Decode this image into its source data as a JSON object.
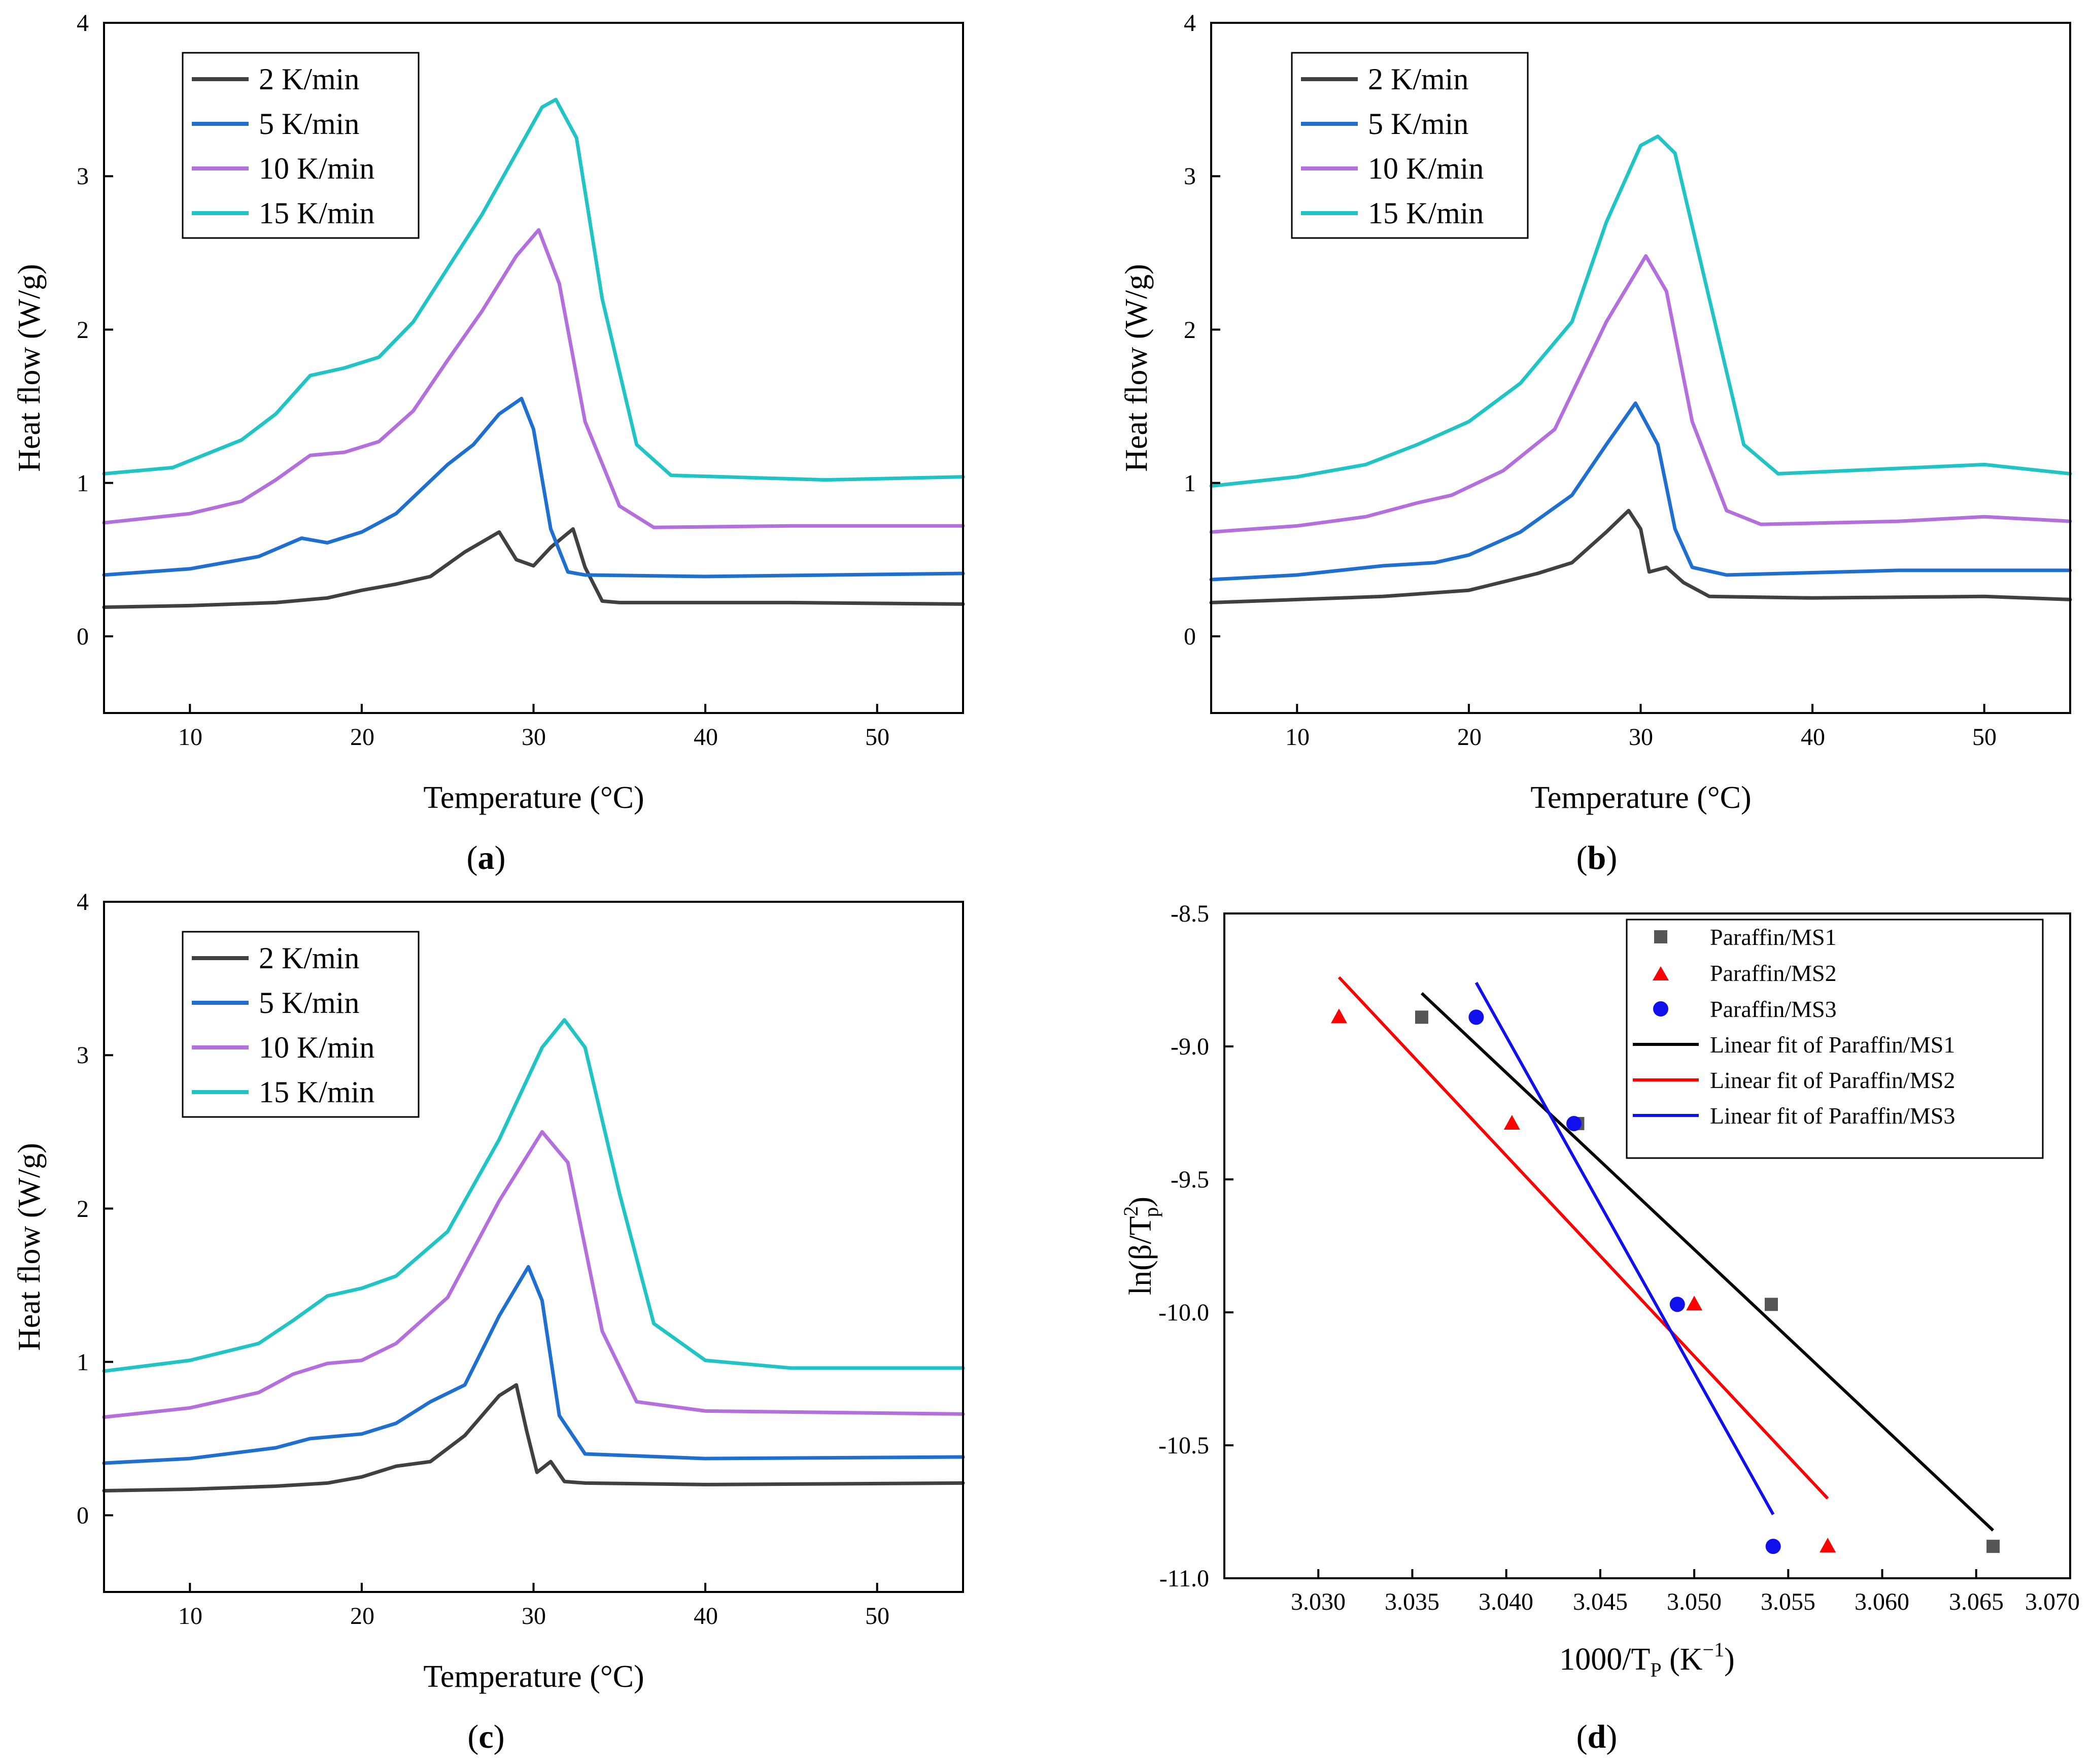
{
  "colors": {
    "rate2": "#404040",
    "rate5": "#1f6fd1",
    "rate10": "#b36fdb",
    "rate15": "#20c4c4",
    "ms1": "#555555",
    "ms2": "#ff0000",
    "ms3": "#1010ee",
    "fit1": "#000000",
    "fit2": "#ff0000",
    "fit3": "#1010ee"
  },
  "chart_data": [
    {
      "id": "a",
      "panel_label": [
        "(",
        "a",
        ")"
      ],
      "type": "line",
      "xlabel": "Temperature (°C)",
      "ylabel": "Heat flow (W/g)",
      "xlim": [
        5,
        55
      ],
      "ylim": [
        -0.5,
        4
      ],
      "xticks": [
        "10",
        "20",
        "30",
        "40",
        "50"
      ],
      "xtick_values": [
        10,
        20,
        30,
        40,
        50
      ],
      "yticks": [
        "0",
        "1",
        "2",
        "3",
        "4"
      ],
      "ytick_values": [
        0,
        1,
        2,
        3,
        4
      ],
      "legend_position": "top-left",
      "series": [
        {
          "name": "2 K/min",
          "color_key": "rate2",
          "x": [
            5,
            10,
            15,
            18,
            20,
            22,
            24,
            26,
            28,
            29,
            30,
            31,
            32.3,
            33,
            34,
            35,
            45,
            55
          ],
          "y": [
            0.19,
            0.2,
            0.22,
            0.25,
            0.3,
            0.34,
            0.39,
            0.55,
            0.68,
            0.5,
            0.46,
            0.58,
            0.7,
            0.45,
            0.23,
            0.22,
            0.22,
            0.21
          ]
        },
        {
          "name": "5 K/min",
          "color_key": "rate5",
          "x": [
            5,
            10,
            14,
            16.5,
            18,
            20,
            22,
            25,
            26.5,
            28,
            29.3,
            30,
            31,
            32,
            33,
            40,
            55
          ],
          "y": [
            0.4,
            0.44,
            0.52,
            0.64,
            0.61,
            0.68,
            0.8,
            1.12,
            1.25,
            1.45,
            1.55,
            1.35,
            0.7,
            0.42,
            0.4,
            0.39,
            0.41
          ]
        },
        {
          "name": "10 K/min",
          "color_key": "rate10",
          "x": [
            5,
            10,
            13,
            15,
            17,
            19,
            21,
            23,
            25,
            27,
            29,
            30.3,
            31.5,
            33,
            35,
            37,
            45,
            55
          ],
          "y": [
            0.74,
            0.8,
            0.88,
            1.02,
            1.18,
            1.2,
            1.27,
            1.47,
            1.8,
            2.12,
            2.48,
            2.65,
            2.3,
            1.4,
            0.85,
            0.71,
            0.72,
            0.72
          ]
        },
        {
          "name": "15 K/min",
          "color_key": "rate15",
          "x": [
            5,
            9,
            13,
            15,
            17,
            19,
            21,
            23,
            25,
            27,
            29,
            30.5,
            31.3,
            32.5,
            34,
            36,
            38,
            47,
            55
          ],
          "y": [
            1.06,
            1.1,
            1.28,
            1.45,
            1.7,
            1.75,
            1.82,
            2.05,
            2.4,
            2.75,
            3.15,
            3.45,
            3.5,
            3.25,
            2.2,
            1.25,
            1.05,
            1.02,
            1.04
          ]
        }
      ]
    },
    {
      "id": "b",
      "panel_label": [
        "(",
        "b",
        ")"
      ],
      "type": "line",
      "xlabel": "Temperature (°C)",
      "ylabel": "Heat flow (W/g)",
      "xlim": [
        5,
        55
      ],
      "ylim": [
        -0.5,
        4
      ],
      "xticks": [
        "10",
        "20",
        "30",
        "40",
        "50"
      ],
      "xtick_values": [
        10,
        20,
        30,
        40,
        50
      ],
      "yticks": [
        "0",
        "1",
        "2",
        "3",
        "4"
      ],
      "yticks_values_note": "",
      "ytick_values": [
        0,
        1,
        2,
        3,
        4
      ],
      "legend_position": "top-left",
      "series": [
        {
          "name": "2 K/min",
          "color_key": "rate2",
          "x": [
            5,
            10,
            15,
            20,
            24,
            26,
            28,
            29.3,
            30,
            30.5,
            31.5,
            32.5,
            34,
            40,
            50,
            55
          ],
          "y": [
            0.22,
            0.24,
            0.26,
            0.3,
            0.41,
            0.48,
            0.68,
            0.82,
            0.7,
            0.42,
            0.45,
            0.35,
            0.26,
            0.25,
            0.26,
            0.24
          ]
        },
        {
          "name": "5 K/min",
          "color_key": "rate5",
          "x": [
            5,
            10,
            15,
            18,
            20,
            23,
            26,
            28,
            29.7,
            31,
            32,
            33,
            35,
            45,
            55
          ],
          "y": [
            0.37,
            0.4,
            0.46,
            0.48,
            0.53,
            0.68,
            0.92,
            1.25,
            1.52,
            1.25,
            0.7,
            0.45,
            0.4,
            0.43,
            0.43
          ]
        },
        {
          "name": "10 K/min",
          "color_key": "rate10",
          "x": [
            5,
            10,
            14,
            17,
            19,
            22,
            25,
            28,
            30.3,
            31.5,
            33,
            35,
            37,
            45,
            50,
            55
          ],
          "y": [
            0.68,
            0.72,
            0.78,
            0.87,
            0.92,
            1.08,
            1.35,
            2.05,
            2.48,
            2.25,
            1.4,
            0.82,
            0.73,
            0.75,
            0.78,
            0.75
          ]
        },
        {
          "name": "15 K/min",
          "color_key": "rate15",
          "x": [
            5,
            10,
            14,
            17,
            20,
            23,
            26,
            28,
            30,
            31,
            32,
            34,
            36,
            38,
            50,
            55
          ],
          "y": [
            0.98,
            1.04,
            1.12,
            1.25,
            1.4,
            1.65,
            2.05,
            2.7,
            3.2,
            3.26,
            3.15,
            2.2,
            1.25,
            1.06,
            1.12,
            1.06
          ]
        }
      ]
    },
    {
      "id": "c",
      "panel_label": [
        "(",
        "c",
        ")"
      ],
      "type": "line",
      "xlabel": "Temperature (°C)",
      "ylabel": "Heat flow (W/g)",
      "xlim": [
        5,
        55
      ],
      "ylim": [
        -0.5,
        4
      ],
      "xticks": [
        "10",
        "20",
        "30",
        "40",
        "50"
      ],
      "xtick_values": [
        10,
        20,
        30,
        40,
        50
      ],
      "yticks": [
        "0",
        "1",
        "2",
        "3",
        "4"
      ],
      "ytick_values": [
        0,
        1,
        2,
        3,
        4
      ],
      "legend_position": "top-left",
      "series": [
        {
          "name": "2 K/min",
          "color_key": "rate2",
          "x": [
            5,
            10,
            15,
            18,
            20,
            22,
            24,
            26,
            28,
            29,
            29.6,
            30.2,
            31,
            31.8,
            33,
            40,
            55
          ],
          "y": [
            0.16,
            0.17,
            0.19,
            0.21,
            0.25,
            0.32,
            0.35,
            0.52,
            0.78,
            0.85,
            0.55,
            0.28,
            0.35,
            0.22,
            0.21,
            0.2,
            0.21
          ]
        },
        {
          "name": "5 K/min",
          "color_key": "rate5",
          "x": [
            5,
            10,
            15,
            17,
            19,
            20,
            22,
            24,
            26,
            28,
            29.7,
            30.5,
            31.5,
            33,
            40,
            55
          ],
          "y": [
            0.34,
            0.37,
            0.44,
            0.5,
            0.52,
            0.53,
            0.6,
            0.74,
            0.85,
            1.3,
            1.62,
            1.4,
            0.65,
            0.4,
            0.37,
            0.38
          ]
        },
        {
          "name": "10 K/min",
          "color_key": "rate10",
          "x": [
            5,
            10,
            14,
            16,
            18,
            20,
            22,
            25,
            28,
            30.5,
            32,
            34,
            36,
            40,
            55
          ],
          "y": [
            0.64,
            0.7,
            0.8,
            0.92,
            0.99,
            1.01,
            1.12,
            1.42,
            2.05,
            2.5,
            2.3,
            1.2,
            0.74,
            0.68,
            0.66
          ]
        },
        {
          "name": "15 K/min",
          "color_key": "rate15",
          "x": [
            5,
            10,
            14,
            16,
            18,
            20,
            22,
            25,
            28,
            30.5,
            31.8,
            33,
            35,
            37,
            40,
            45,
            55
          ],
          "y": [
            0.94,
            1.01,
            1.12,
            1.27,
            1.43,
            1.48,
            1.56,
            1.85,
            2.45,
            3.05,
            3.23,
            3.05,
            2.1,
            1.25,
            1.01,
            0.96,
            0.96
          ]
        }
      ]
    },
    {
      "id": "d",
      "panel_label": [
        "(",
        "d",
        ")"
      ],
      "type": "scatter",
      "xlabel": [
        "1000/T",
        "P",
        " (K",
        "−1",
        ")"
      ],
      "ylabel": [
        "ln(β/T",
        "2",
        "p",
        ")"
      ],
      "xlim": [
        3.025,
        3.07
      ],
      "ylim": [
        -11.0,
        -8.5
      ],
      "xticks": [
        "3.030",
        "3.035",
        "3.040",
        "3.045",
        "3.050",
        "3.055",
        "3.060",
        "3.065",
        "3.070"
      ],
      "xtick_values": [
        3.03,
        3.035,
        3.04,
        3.045,
        3.05,
        3.055,
        3.06,
        3.065,
        3.07
      ],
      "yticks": [
        "-8.5",
        "-9.0",
        "-9.5",
        "-10.0",
        "-10.5",
        "-11.0"
      ],
      "ytick_values": [
        -8.5,
        -9.0,
        -9.5,
        -10.0,
        -10.5,
        -11.0
      ],
      "legend_position": "top-right",
      "scatter_series": [
        {
          "name": "Paraffin/MS1",
          "marker": "square",
          "color_key": "ms1",
          "x": [
            3.0355,
            3.0438,
            3.0541,
            3.0659
          ],
          "y": [
            -8.89,
            -9.29,
            -9.97,
            -10.88
          ]
        },
        {
          "name": "Paraffin/MS2",
          "marker": "triangle",
          "color_key": "ms2",
          "x": [
            3.0311,
            3.0403,
            3.05,
            3.0571
          ],
          "y": [
            -8.89,
            -9.29,
            -9.97,
            -10.88
          ]
        },
        {
          "name": "Paraffin/MS3",
          "marker": "circle",
          "color_key": "ms3",
          "x": [
            3.0384,
            3.0436,
            3.0491,
            3.0542
          ],
          "y": [
            -8.89,
            -9.29,
            -9.97,
            -10.88
          ]
        }
      ],
      "fit_series": [
        {
          "name": "Linear fit of Paraffin/MS1",
          "color_key": "fit1",
          "x": [
            3.0355,
            3.0659
          ],
          "y": [
            -8.8,
            -10.82
          ]
        },
        {
          "name": "Linear fit of Paraffin/MS2",
          "color_key": "fit2",
          "x": [
            3.0311,
            3.0571
          ],
          "y": [
            -8.74,
            -10.7
          ]
        },
        {
          "name": "Linear fit of Paraffin/MS3",
          "color_key": "fit3",
          "x": [
            3.0384,
            3.0542
          ],
          "y": [
            -8.76,
            -10.76
          ]
        }
      ]
    }
  ]
}
